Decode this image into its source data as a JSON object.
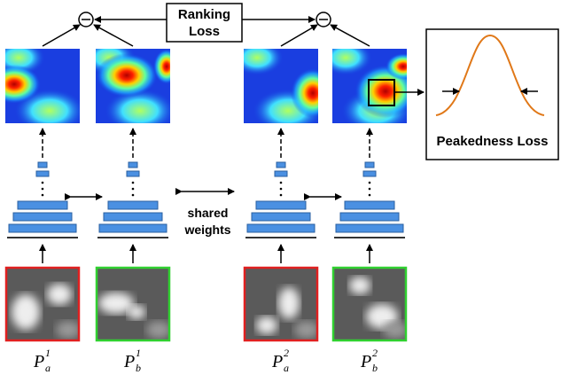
{
  "ranking_loss": {
    "lines": [
      "Ranking",
      "Loss"
    ]
  },
  "peakedness_loss": "Peakedness Loss",
  "shared_weights": {
    "lines": [
      "shared",
      "weights"
    ]
  },
  "patches": [
    {
      "label": {
        "base": "P",
        "sub": "a",
        "sup": "1"
      },
      "border": "#e02020"
    },
    {
      "label": {
        "base": "P",
        "sub": "b",
        "sup": "1"
      },
      "border": "#30d030"
    },
    {
      "label": {
        "base": "P",
        "sub": "a",
        "sup": "2"
      },
      "border": "#e02020"
    },
    {
      "label": {
        "base": "P",
        "sub": "b",
        "sup": "2"
      },
      "border": "#30d030"
    }
  ]
}
